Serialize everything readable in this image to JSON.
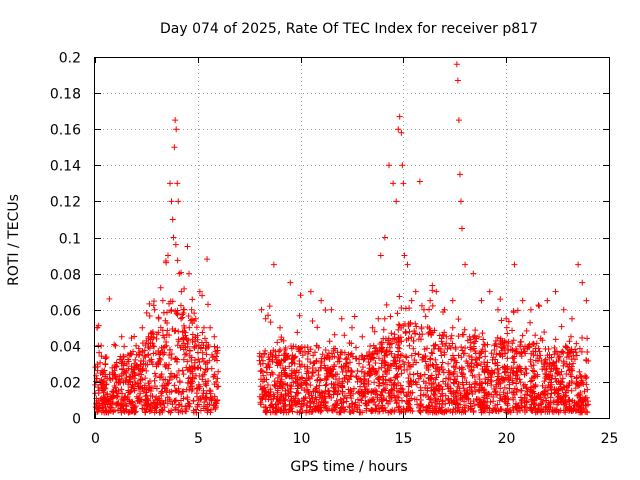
{
  "chart_data": {
    "type": "scatter",
    "title": "Day 074 of 2025, Rate Of TEC Index for receiver p817",
    "xlabel": "GPS time / hours",
    "ylabel": "ROTI / TECUs",
    "xlim": [
      0,
      25
    ],
    "ylim": [
      0,
      0.2
    ],
    "x_ticks": [
      "0",
      "5",
      "10",
      "15",
      "20",
      "25"
    ],
    "y_ticks": [
      "0",
      "0.02",
      "0.04",
      "0.06",
      "0.08",
      "0.1",
      "0.12",
      "0.14",
      "0.16",
      "0.18",
      "0.2"
    ],
    "grid": true,
    "marker": "plus",
    "marker_color": "#ff0000",
    "data_gap_hours": [
      6.0,
      8.0
    ],
    "series": [
      {
        "x": [
          0.1,
          0.3,
          0.5,
          0.7,
          1.0,
          1.3,
          1.6,
          2.0,
          2.3,
          2.6,
          2.9,
          3.1,
          3.3,
          3.45,
          3.55,
          3.65,
          3.72,
          3.78,
          3.82,
          3.86,
          3.9,
          3.95,
          4.0,
          4.05,
          4.1,
          4.2,
          4.3,
          4.5,
          4.7,
          4.9,
          5.1,
          5.3,
          5.45,
          5.6,
          5.8,
          8.1,
          8.3,
          8.5,
          8.7,
          9.0,
          9.5,
          10.0,
          10.5,
          11.0,
          11.5,
          12.0,
          12.5,
          13.0,
          13.5,
          13.9,
          14.1,
          14.3,
          14.5,
          14.65,
          14.75,
          14.82,
          14.9,
          14.95,
          15.0,
          15.05,
          15.2,
          15.4,
          15.6,
          15.8,
          16.0,
          16.3,
          16.6,
          17.0,
          17.4,
          17.6,
          17.65,
          17.7,
          17.75,
          17.8,
          17.85,
          18.0,
          18.4,
          18.8,
          19.2,
          19.6,
          20.0,
          20.4,
          20.8,
          21.2,
          21.6,
          22.0,
          22.4,
          22.8,
          23.2,
          23.5,
          23.7,
          23.9
        ],
        "y": [
          0.05,
          0.04,
          0.03,
          0.066,
          0.04,
          0.045,
          0.035,
          0.04,
          0.05,
          0.045,
          0.06,
          0.055,
          0.065,
          0.087,
          0.09,
          0.13,
          0.12,
          0.11,
          0.1,
          0.15,
          0.165,
          0.16,
          0.13,
          0.12,
          0.08,
          0.07,
          0.06,
          0.095,
          0.06,
          0.055,
          0.07,
          0.05,
          0.088,
          0.05,
          0.045,
          0.06,
          0.055,
          0.062,
          0.085,
          0.05,
          0.075,
          0.068,
          0.07,
          0.065,
          0.06,
          0.055,
          0.05,
          0.045,
          0.05,
          0.09,
          0.1,
          0.14,
          0.13,
          0.12,
          0.16,
          0.167,
          0.158,
          0.14,
          0.13,
          0.09,
          0.085,
          0.065,
          0.07,
          0.131,
          0.06,
          0.065,
          0.07,
          0.06,
          0.065,
          0.196,
          0.187,
          0.165,
          0.135,
          0.12,
          0.105,
          0.085,
          0.08,
          0.065,
          0.07,
          0.06,
          0.055,
          0.085,
          0.065,
          0.06,
          0.062,
          0.065,
          0.07,
          0.06,
          0.055,
          0.085,
          0.075,
          0.065
        ]
      }
    ]
  }
}
